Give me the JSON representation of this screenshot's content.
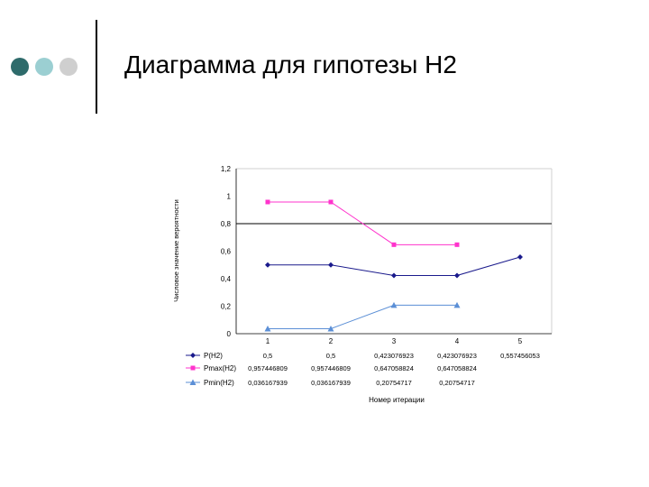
{
  "slide": {
    "title": "Диаграмма для гипотезы Н2",
    "dot_colors": [
      "#2e6b6b",
      "#9bcfd2",
      "#cfcfcf"
    ]
  },
  "chart_data": {
    "type": "line",
    "categories": [
      "1",
      "2",
      "3",
      "4",
      "5"
    ],
    "ylabel": "Числовое значение вероятности",
    "xlabel": "Номер итерации",
    "ylim": [
      0,
      1.2
    ],
    "yticks": [
      "0",
      "0,2",
      "0,4",
      "0,6",
      "0,8",
      "1",
      "1,2"
    ],
    "grid": false,
    "reference_line": 0.8,
    "series": [
      {
        "name": "P(H2)",
        "values": [
          0.5,
          0.5,
          0.423076923,
          0.423076923,
          0.557456053
        ],
        "labels": [
          "0,5",
          "0,5",
          "0,423076923",
          "0,423076923",
          "0,557456053"
        ],
        "color": "#1a1a8c",
        "marker": "diamond"
      },
      {
        "name": "Pmax(H2)",
        "values": [
          0.957446809,
          0.957446809,
          0.647058824,
          0.647058824,
          null
        ],
        "labels": [
          "0,957446809",
          "0,957446809",
          "0,647058824",
          "0,647058824",
          ""
        ],
        "color": "#ff33cc",
        "marker": "square"
      },
      {
        "name": "Pmin(H2)",
        "values": [
          0.036167939,
          0.036167939,
          0.20754717,
          0.20754717,
          null
        ],
        "labels": [
          "0,036167939",
          "0,036167939",
          "0,20754717",
          "0,20754717",
          ""
        ],
        "color": "#5b8fd6",
        "marker": "triangle"
      }
    ]
  }
}
